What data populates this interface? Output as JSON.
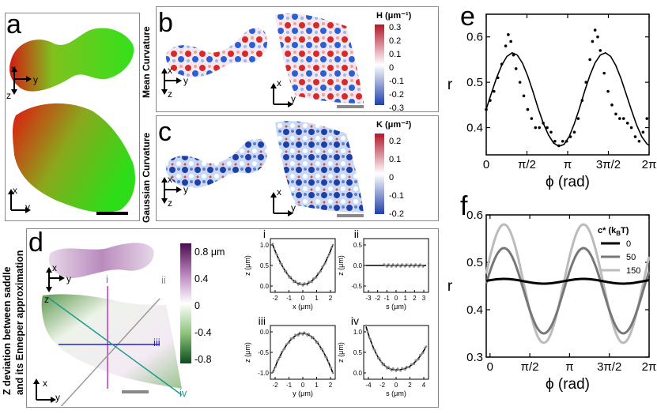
{
  "panels": {
    "a": {
      "label": "a",
      "axes_top": [
        "x",
        "y",
        "z"
      ],
      "axes_bottom": [
        "x",
        "y"
      ]
    },
    "b": {
      "label": "b",
      "side_title": "Mean Curvature",
      "colorbar_title": "H (μm⁻¹)",
      "ticks": [
        "0.3",
        "0.2",
        "0.1",
        "0",
        "-0.1",
        "-0.2",
        "-0.3"
      ],
      "axes_left": [
        "x",
        "y",
        "z"
      ],
      "axes_right": [
        "x",
        "y"
      ]
    },
    "c": {
      "label": "c",
      "side_title": "Gaussian Curvature",
      "colorbar_title": "K (μm⁻²)",
      "ticks": [
        "0.2",
        "0.1",
        "0",
        "-0.1",
        "-0.2"
      ],
      "axes_left": [
        "x",
        "y",
        "z"
      ],
      "axes_right": [
        "x",
        "y"
      ]
    },
    "d": {
      "label": "d",
      "side_title_1": "Z deviation between  saddle",
      "side_title_2": "and its Enneper approximation",
      "colorbar_ticks": [
        "0.8 μm",
        "0.4",
        "0",
        "-0.4",
        "-0.8"
      ],
      "axes_top": [
        "x",
        "y",
        "z"
      ],
      "axes_bottom": [
        "x",
        "y"
      ],
      "line_labels": [
        "i",
        "ii",
        "iii",
        "iv"
      ],
      "sub": {
        "i": {
          "label": "i",
          "xlabel": "x (μm)",
          "ylabel": "z (μm)",
          "xticks": [
            "-2",
            "-1",
            "0",
            "1",
            "2"
          ],
          "yticks": [
            "1.0",
            "0.5",
            "0.0"
          ]
        },
        "ii": {
          "label": "ii",
          "xlabel": "s (μm)",
          "ylabel": "z (μm)",
          "xticks": [
            "-3",
            "-2",
            "-1",
            "0",
            "1",
            "2",
            "3"
          ],
          "yticks": [
            "0.5",
            "0.0",
            "-0.5"
          ]
        },
        "iii": {
          "label": "iii",
          "xlabel": "y (μm)",
          "ylabel": "z (μm)",
          "xticks": [
            "-2",
            "-1",
            "0",
            "1",
            "2"
          ],
          "yticks": [
            "0.0",
            "-0.5",
            "-1.0"
          ]
        },
        "iv": {
          "label": "iv",
          "xlabel": "s (μm)",
          "ylabel": "z (μm)",
          "xticks": [
            "-4",
            "-2",
            "0",
            "2",
            "4"
          ],
          "yticks": [
            "1.0",
            "0.5",
            "0.0"
          ]
        }
      }
    },
    "e": {
      "label": "e"
    },
    "f": {
      "label": "f",
      "legend_title": "c* (k",
      "legend_title_sub": "B",
      "legend_title_end": "T)"
    }
  },
  "chart_data": [
    {
      "id": "e",
      "type": "line",
      "xlabel": "ϕ (rad)",
      "ylabel": "r",
      "xlim": [
        0,
        6.2832
      ],
      "ylim": [
        0.34,
        0.65
      ],
      "xticks": [
        0,
        1.5708,
        3.1416,
        4.7124,
        6.2832
      ],
      "xticklabels": [
        "0",
        "π/2",
        "π",
        "3π/2",
        "2π"
      ],
      "yticks": [
        0.4,
        0.5,
        0.6
      ],
      "yticklabels": [
        "0.4",
        "0.5",
        "0.6"
      ],
      "series": [
        {
          "name": "fit",
          "style": "line",
          "x": [
            0,
            0.2,
            0.4,
            0.6,
            0.8,
            1.0,
            1.2,
            1.4,
            1.6,
            1.8,
            2.0,
            2.2,
            2.4,
            2.6,
            2.8,
            3.0,
            3.2,
            3.4,
            3.6,
            3.8,
            4.0,
            4.2,
            4.4,
            4.6,
            4.8,
            5.0,
            5.2,
            5.4,
            5.6,
            5.8,
            6.0,
            6.2,
            6.283
          ],
          "y": [
            0.441,
            0.476,
            0.51,
            0.538,
            0.557,
            0.565,
            0.56,
            0.542,
            0.514,
            0.48,
            0.443,
            0.41,
            0.384,
            0.366,
            0.359,
            0.363,
            0.38,
            0.409,
            0.443,
            0.481,
            0.515,
            0.543,
            0.56,
            0.565,
            0.557,
            0.537,
            0.508,
            0.474,
            0.439,
            0.406,
            0.38,
            0.364,
            0.361
          ]
        },
        {
          "name": "data",
          "style": "dots",
          "x": [
            0,
            0.15,
            0.3,
            0.45,
            0.6,
            0.75,
            0.85,
            0.95,
            1.05,
            1.15,
            1.3,
            1.45,
            1.6,
            1.75,
            1.9,
            2.05,
            2.2,
            2.35,
            2.5,
            2.65,
            2.8,
            2.95,
            3.1,
            3.25,
            3.4,
            3.55,
            3.7,
            3.85,
            4.0,
            4.1,
            4.2,
            4.3,
            4.4,
            4.55,
            4.7,
            4.85,
            5.0,
            5.15,
            5.3,
            5.45,
            5.6,
            5.75,
            5.9,
            6.05,
            6.2
          ],
          "y": [
            0.44,
            0.46,
            0.48,
            0.51,
            0.54,
            0.58,
            0.605,
            0.59,
            0.56,
            0.53,
            0.5,
            0.47,
            0.44,
            0.42,
            0.4,
            0.4,
            0.41,
            0.4,
            0.39,
            0.37,
            0.36,
            0.37,
            0.37,
            0.38,
            0.39,
            0.42,
            0.46,
            0.5,
            0.55,
            0.59,
            0.615,
            0.6,
            0.57,
            0.52,
            0.48,
            0.45,
            0.43,
            0.42,
            0.42,
            0.41,
            0.4,
            0.38,
            0.37,
            0.39,
            0.42
          ]
        }
      ]
    },
    {
      "id": "f",
      "type": "line",
      "xlabel": "ϕ (rad)",
      "ylabel": "r",
      "xlim": [
        -0.15,
        6.2832
      ],
      "ylim": [
        0.3,
        0.6
      ],
      "xticks": [
        0,
        1.5708,
        3.1416,
        4.7124,
        6.2832
      ],
      "xticklabels": [
        "0",
        "π/2",
        "π",
        "3π/2",
        "2π"
      ],
      "yticks": [
        0.3,
        0.4,
        0.5,
        0.6
      ],
      "yticklabels": [
        "0.3",
        "0.4",
        "0.5",
        "0.6"
      ],
      "series": [
        {
          "name": "0",
          "color": "#000000",
          "mean": 0.46,
          "amplitude": 0.005
        },
        {
          "name": "50",
          "color": "#777777",
          "mean": 0.44,
          "amplitude": 0.09
        },
        {
          "name": "150",
          "color": "#bbbbbb",
          "mean": 0.455,
          "amplitude": 0.125
        }
      ]
    }
  ]
}
